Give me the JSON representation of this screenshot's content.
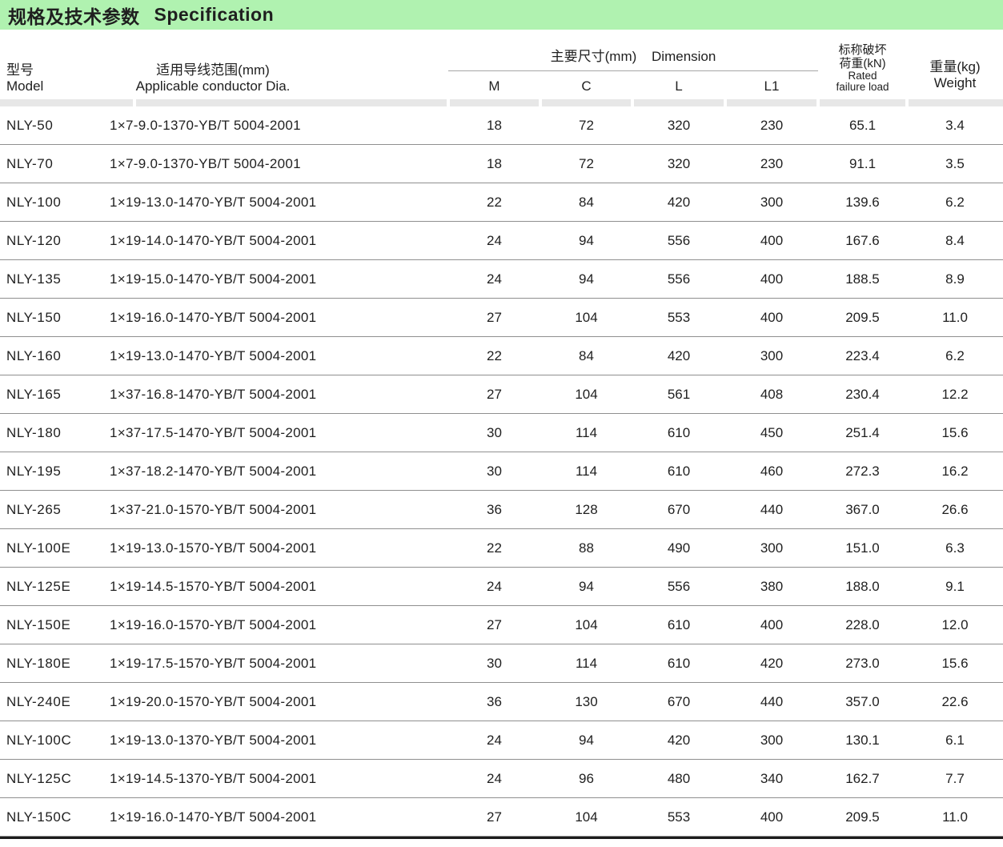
{
  "page": {
    "title_zh": "规格及技术参数",
    "title_en": "Specification"
  },
  "colors": {
    "header_green": "#b0f2b0",
    "bar_gray": "#e7e7e7",
    "line_gray": "#8f8f8f",
    "underline_gray": "#a6a6a6",
    "bottom_line": "#1c1c1c",
    "text": "#1f1f1f"
  },
  "table": {
    "headers": {
      "model_zh": "型号",
      "model_en": "Model",
      "conductor_zh": "适用导线范围(mm)",
      "conductor_en": "Applicable conductor Dia.",
      "dimension_group_zh": "主要尺寸(mm)",
      "dimension_group_en": "Dimension",
      "dim_cols": [
        "M",
        "C",
        "L",
        "L1"
      ],
      "rated_zh_line1": "标称破坏",
      "rated_zh_line2": "荷重(kN)",
      "rated_en_line1": "Rated",
      "rated_en_line2": "failure load",
      "weight_zh": "重量(kg)",
      "weight_en": "Weight"
    },
    "rows": [
      {
        "model": "NLY-50",
        "conductor": "1×7-9.0-1370-YB/T 5004-2001",
        "m": "18",
        "c": "72",
        "l": "320",
        "l1": "230",
        "rated": "65.1",
        "weight": "3.4"
      },
      {
        "model": "NLY-70",
        "conductor": "1×7-9.0-1370-YB/T 5004-2001",
        "m": "18",
        "c": "72",
        "l": "320",
        "l1": "230",
        "rated": "91.1",
        "weight": "3.5"
      },
      {
        "model": "NLY-100",
        "conductor": "1×19-13.0-1470-YB/T 5004-2001",
        "m": "22",
        "c": "84",
        "l": "420",
        "l1": "300",
        "rated": "139.6",
        "weight": "6.2"
      },
      {
        "model": "NLY-120",
        "conductor": "1×19-14.0-1470-YB/T 5004-2001",
        "m": "24",
        "c": "94",
        "l": "556",
        "l1": "400",
        "rated": "167.6",
        "weight": "8.4"
      },
      {
        "model": "NLY-135",
        "conductor": "1×19-15.0-1470-YB/T 5004-2001",
        "m": "24",
        "c": "94",
        "l": "556",
        "l1": "400",
        "rated": "188.5",
        "weight": "8.9"
      },
      {
        "model": "NLY-150",
        "conductor": "1×19-16.0-1470-YB/T 5004-2001",
        "m": "27",
        "c": "104",
        "l": "553",
        "l1": "400",
        "rated": "209.5",
        "weight": "11.0"
      },
      {
        "model": "NLY-160",
        "conductor": "1×19-13.0-1470-YB/T 5004-2001",
        "m": "22",
        "c": "84",
        "l": "420",
        "l1": "300",
        "rated": "223.4",
        "weight": "6.2"
      },
      {
        "model": "NLY-165",
        "conductor": "1×37-16.8-1470-YB/T 5004-2001",
        "m": "27",
        "c": "104",
        "l": "561",
        "l1": "408",
        "rated": "230.4",
        "weight": "12.2"
      },
      {
        "model": "NLY-180",
        "conductor": "1×37-17.5-1470-YB/T 5004-2001",
        "m": "30",
        "c": "114",
        "l": "610",
        "l1": "450",
        "rated": "251.4",
        "weight": "15.6"
      },
      {
        "model": "NLY-195",
        "conductor": "1×37-18.2-1470-YB/T 5004-2001",
        "m": "30",
        "c": "114",
        "l": "610",
        "l1": "460",
        "rated": "272.3",
        "weight": "16.2"
      },
      {
        "model": "NLY-265",
        "conductor": "1×37-21.0-1570-YB/T 5004-2001",
        "m": "36",
        "c": "128",
        "l": "670",
        "l1": "440",
        "rated": "367.0",
        "weight": "26.6"
      },
      {
        "model": "NLY-100E",
        "conductor": "1×19-13.0-1570-YB/T 5004-2001",
        "m": "22",
        "c": "88",
        "l": "490",
        "l1": "300",
        "rated": "151.0",
        "weight": "6.3"
      },
      {
        "model": "NLY-125E",
        "conductor": "1×19-14.5-1570-YB/T 5004-2001",
        "m": "24",
        "c": "94",
        "l": "556",
        "l1": "380",
        "rated": "188.0",
        "weight": "9.1"
      },
      {
        "model": "NLY-150E",
        "conductor": "1×19-16.0-1570-YB/T 5004-2001",
        "m": "27",
        "c": "104",
        "l": "610",
        "l1": "400",
        "rated": "228.0",
        "weight": "12.0"
      },
      {
        "model": "NLY-180E",
        "conductor": "1×19-17.5-1570-YB/T 5004-2001",
        "m": "30",
        "c": "114",
        "l": "610",
        "l1": "420",
        "rated": "273.0",
        "weight": "15.6"
      },
      {
        "model": "NLY-240E",
        "conductor": "1×19-20.0-1570-YB/T 5004-2001",
        "m": "36",
        "c": "130",
        "l": "670",
        "l1": "440",
        "rated": "357.0",
        "weight": "22.6"
      },
      {
        "model": "NLY-100C",
        "conductor": "1×19-13.0-1370-YB/T 5004-2001",
        "m": "24",
        "c": "94",
        "l": "420",
        "l1": "300",
        "rated": "130.1",
        "weight": "6.1"
      },
      {
        "model": "NLY-125C",
        "conductor": "1×19-14.5-1370-YB/T 5004-2001",
        "m": "24",
        "c": "96",
        "l": "480",
        "l1": "340",
        "rated": "162.7",
        "weight": "7.7"
      },
      {
        "model": "NLY-150C",
        "conductor": "1×19-16.0-1470-YB/T 5004-2001",
        "m": "27",
        "c": "104",
        "l": "553",
        "l1": "400",
        "rated": "209.5",
        "weight": "11.0"
      }
    ]
  }
}
